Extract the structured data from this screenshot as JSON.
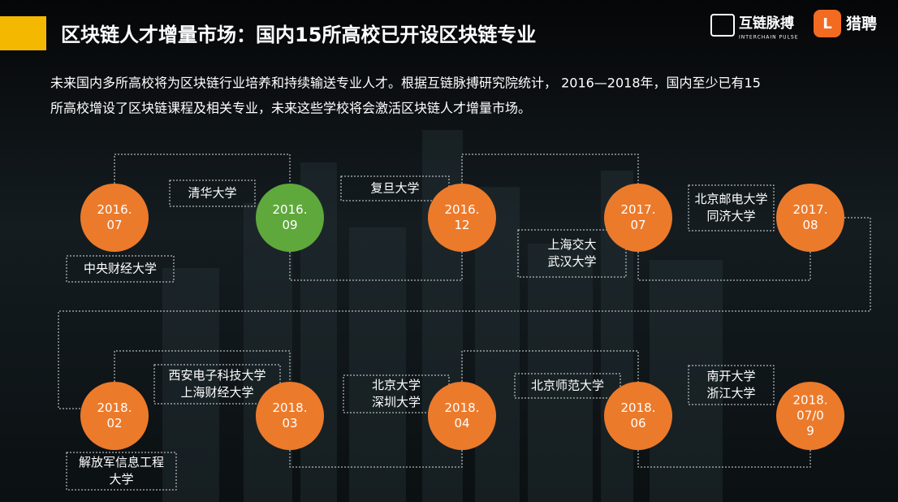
{
  "header": {
    "title": "区块链人才增量市场：国内15所高校已开设区块链专业",
    "brand": "互链脉搏",
    "brand_sub": "INTERCHAIN PULSE",
    "partner": "猎聘"
  },
  "intro": [
    "未来国内多所高校将为区块链行业培养和持续输送专业人才。根据互链脉搏研究院统计， 2016—2018年，国内至少已有15",
    "所高校增设了区块链课程及相关专业，未来这些学校将会激活区块链人才增量市场。"
  ],
  "timeline": [
    {
      "date": [
        "2016.",
        "07"
      ],
      "schools": [
        "中央财经大学"
      ]
    },
    {
      "date": [
        "2016.",
        "09"
      ],
      "schools": [
        "清华大学"
      ]
    },
    {
      "date": [
        "2016.",
        "12"
      ],
      "schools": [
        "复旦大学"
      ]
    },
    {
      "date": [
        "2017.",
        "07"
      ],
      "schools": [
        "上海交大",
        "武汉大学"
      ]
    },
    {
      "date": [
        "2017.",
        "08"
      ],
      "schools": [
        "北京邮电大学",
        "同济大学"
      ]
    },
    {
      "date": [
        "2018.",
        "02"
      ],
      "schools": [
        "解放军信息工程",
        "大学"
      ]
    },
    {
      "date": [
        "2018.",
        "03"
      ],
      "schools": [
        "西安电子科技大学",
        "上海财经大学"
      ]
    },
    {
      "date": [
        "2018.",
        "04"
      ],
      "schools": [
        "北京大学",
        "深圳大学"
      ]
    },
    {
      "date": [
        "2018.",
        "06"
      ],
      "schools": [
        "北京师范大学"
      ]
    },
    {
      "date": [
        "2018.",
        "07/0",
        "9"
      ],
      "schools": [
        "南开大学",
        "浙江大学"
      ]
    }
  ]
}
